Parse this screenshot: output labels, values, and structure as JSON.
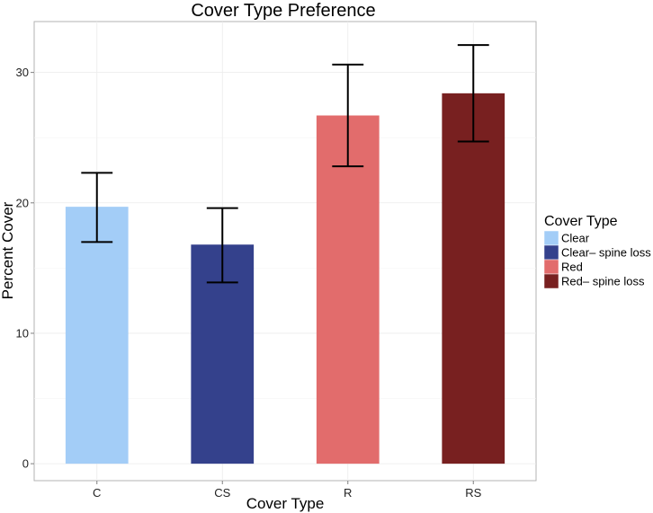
{
  "chart_data": {
    "type": "bar",
    "title": "Cover Type Preference",
    "xlabel": "Cover Type",
    "ylabel": "Percent Cover",
    "categories": [
      "C",
      "CS",
      "R",
      "RS"
    ],
    "values": [
      19.7,
      16.8,
      26.7,
      28.4
    ],
    "error_low": [
      17.0,
      13.9,
      22.8,
      24.7
    ],
    "error_high": [
      22.3,
      19.6,
      30.6,
      32.1
    ],
    "colors": [
      "#a3cdf7",
      "#34418c",
      "#e26c6c",
      "#782020"
    ],
    "ylim": [
      -1.3,
      33.9
    ],
    "yticks": [
      0,
      10,
      20,
      30
    ],
    "grid": true,
    "legend": {
      "title": "Cover Type",
      "position": "right",
      "entries": [
        "Clear",
        "Clear– spine loss",
        "Red",
        "Red– spine loss"
      ]
    }
  }
}
